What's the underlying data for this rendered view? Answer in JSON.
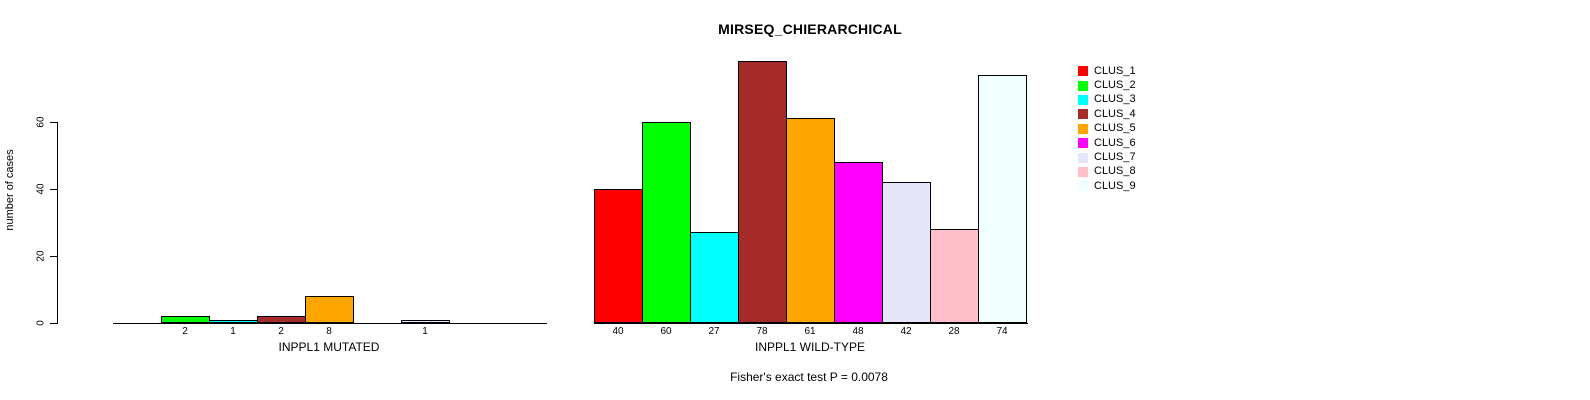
{
  "title": "MIRSEQ_CHIERARCHICAL",
  "chart_data": {
    "type": "bar",
    "title": "MIRSEQ_CHIERARCHICAL",
    "ylabel": "number of cases",
    "xlabel": "",
    "categories": [
      "CLUS_1",
      "CLUS_2",
      "CLUS_3",
      "CLUS_4",
      "CLUS_5",
      "CLUS_6",
      "CLUS_7",
      "CLUS_8",
      "CLUS_9"
    ],
    "colors": [
      "#FF0000",
      "#00FF00",
      "#00FFFF",
      "#A52A2A",
      "#FFA500",
      "#FF00FF",
      "#E6E6FA",
      "#FFC0CB",
      "#F0FFFF"
    ],
    "series": [
      {
        "name": "INPPL1 MUTATED",
        "values": [
          0,
          2,
          1,
          2,
          8,
          0,
          1,
          0,
          0
        ]
      },
      {
        "name": "INPPL1 WILD-TYPE",
        "values": [
          40,
          60,
          27,
          78,
          61,
          48,
          42,
          28,
          74
        ]
      }
    ],
    "bar_value_labels": {
      "INPPL1 MUTATED": [
        "2",
        "1",
        "2",
        "8",
        "1"
      ],
      "INPPL1 WILD-TYPE": [
        "40",
        "60",
        "27",
        "78",
        "61",
        "48",
        "42",
        "28",
        "74"
      ]
    },
    "yticks": [
      0,
      20,
      40,
      60
    ],
    "ylim": [
      0,
      78
    ],
    "grid": false,
    "legend_position": "right",
    "annotation": "Fisher's exact test P = 0.0078"
  }
}
